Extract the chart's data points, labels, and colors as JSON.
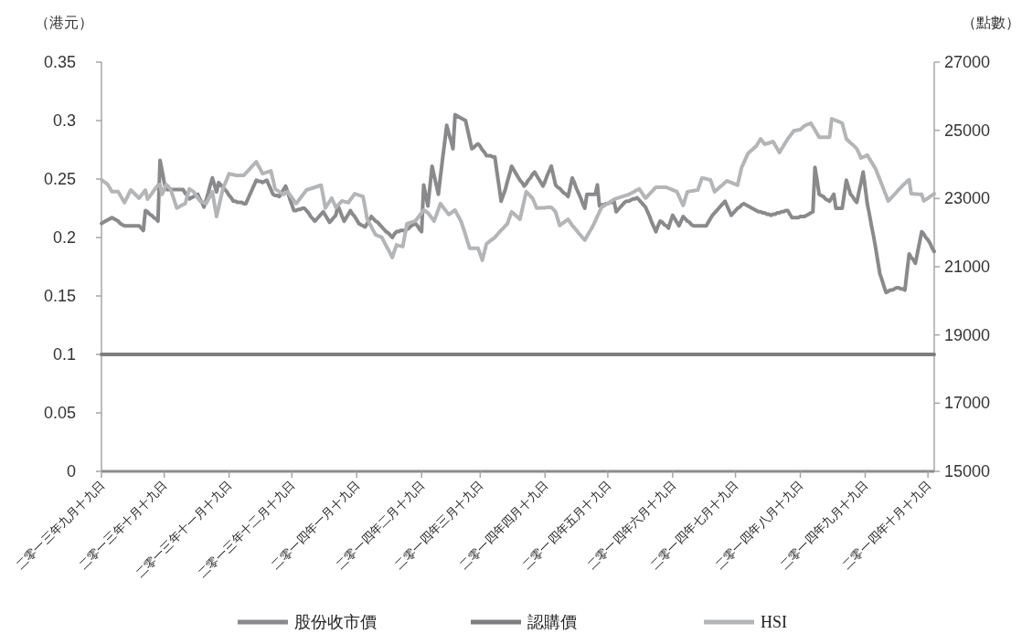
{
  "chart_data": {
    "type": "line",
    "ylabel": "（港元）",
    "y2label": "（點數）",
    "legend": "bottom",
    "line_style": "solid",
    "categories": [
      "二零一三年九月十九日",
      null,
      null,
      null,
      null,
      null,
      null,
      null,
      null,
      null,
      null,
      null,
      null,
      null,
      null,
      null,
      null,
      null,
      null,
      null,
      null,
      null,
      null,
      null,
      null,
      null,
      null,
      null,
      null,
      null,
      "二零一三年十月十九日",
      null,
      null,
      null,
      null,
      null,
      null,
      null,
      null,
      null,
      null,
      null,
      null,
      null,
      null,
      null,
      null,
      null,
      null,
      null,
      null,
      null,
      null,
      null,
      null,
      null,
      null,
      null,
      null,
      null,
      null,
      "二零一三年十一月十九日",
      null,
      null,
      null,
      null,
      null,
      null,
      null,
      null,
      null,
      null,
      null,
      null,
      null,
      null,
      null,
      null,
      null,
      null,
      null,
      null,
      null,
      null,
      null,
      null,
      null,
      null,
      null,
      null,
      null,
      "二零一三年十二月十九日",
      null,
      null,
      null,
      null,
      null,
      null,
      null,
      null,
      null,
      null,
      null,
      null,
      null,
      null,
      null,
      null,
      null,
      null,
      null,
      null,
      null,
      null,
      null,
      null,
      null,
      null,
      null,
      null,
      null,
      null,
      "二零一四年一月十九日",
      null,
      null,
      null,
      null,
      null,
      null,
      null,
      null,
      null,
      null,
      null,
      null,
      null,
      null,
      null,
      null,
      null,
      null,
      null,
      null,
      null,
      null,
      null,
      null,
      null,
      null,
      null,
      null,
      null,
      null,
      "二零一四年二月十九日",
      null,
      null,
      null,
      null,
      null,
      null,
      null,
      null,
      null,
      null,
      null,
      null,
      null,
      null,
      null,
      null,
      null,
      null,
      null,
      null,
      null,
      null,
      null,
      null,
      null,
      null,
      null,
      "二零一四年三月十九日",
      null,
      null,
      null,
      null,
      null,
      null,
      null,
      null,
      null,
      null,
      null,
      null,
      null,
      null,
      null,
      null,
      null,
      null,
      null,
      null,
      null,
      null,
      null,
      null,
      null,
      null,
      null,
      null,
      null,
      null,
      "二零一四年四月十九日",
      null,
      null,
      null,
      null,
      null,
      null,
      null,
      null,
      null,
      null,
      null,
      null,
      null,
      null,
      null,
      null,
      null,
      null,
      null,
      null,
      null,
      null,
      null,
      null,
      null,
      null,
      null,
      null,
      null,
      "二零一四年五月十九日",
      null,
      null,
      null,
      null,
      null,
      null,
      null,
      null,
      null,
      null,
      null,
      null,
      null,
      null,
      null,
      null,
      null,
      null,
      null,
      null,
      null,
      null,
      null,
      null,
      null,
      null,
      null,
      null,
      null,
      null,
      "二零一四年六月十九日",
      null,
      null,
      null,
      null,
      null,
      null,
      null,
      null,
      null,
      null,
      null,
      null,
      null,
      null,
      null,
      null,
      null,
      null,
      null,
      null,
      null,
      null,
      null,
      null,
      null,
      null,
      null,
      null,
      null,
      "二零一四年七月十九日",
      null,
      null,
      null,
      null,
      null,
      null,
      null,
      null,
      null,
      null,
      null,
      null,
      null,
      null,
      null,
      null,
      null,
      null,
      null,
      null,
      null,
      null,
      null,
      null,
      null,
      null,
      null,
      null,
      null,
      null,
      "二零一四年八月十九日",
      null,
      null,
      null,
      null,
      null,
      null,
      null,
      null,
      null,
      null,
      null,
      null,
      null,
      null,
      null,
      null,
      null,
      null,
      null,
      null,
      null,
      null,
      null,
      null,
      null,
      null,
      null,
      null,
      null,
      null,
      "二零一四年九月十九日",
      null,
      null,
      null,
      null,
      null,
      null,
      null,
      null,
      null,
      null,
      null,
      null,
      null,
      null,
      null,
      null,
      null,
      null,
      null,
      null,
      null,
      null,
      null,
      null,
      null,
      null,
      null,
      null,
      null,
      "二零一四年十月十九日",
      null,
      null,
      null
    ],
    "ylim": [
      0,
      0.35
    ],
    "yticks": [
      0,
      0.05,
      0.1,
      0.15,
      0.2,
      0.25,
      0.3,
      0.35
    ],
    "y2lim": [
      15000,
      27000
    ],
    "y2ticks": [
      15000,
      17000,
      19000,
      21000,
      23000,
      25000,
      27000
    ],
    "series": [
      {
        "name": "股份收市價",
        "color": "#8a8a8c",
        "axis": "y",
        "values": [
          0.212,
          0.213,
          0.214,
          0.215,
          0.216,
          0.217,
          0.216,
          0.215,
          0.214,
          0.212,
          0.211,
          0.21,
          0.21,
          0.21,
          0.21,
          0.21,
          0.21,
          0.21,
          0.21,
          0.208,
          0.206,
          0.223,
          0.222,
          0.22,
          0.219,
          0.217,
          0.216,
          0.214,
          0.266,
          0.257,
          0.247,
          0.241,
          0.241,
          0.241,
          0.241,
          0.241,
          0.241,
          0.241,
          0.241,
          0.241,
          0.238,
          0.236,
          0.233,
          0.234,
          0.235,
          0.236,
          0.237,
          0.233,
          0.23,
          0.226,
          0.232,
          0.238,
          0.245,
          0.251,
          0.245,
          0.239,
          0.247,
          0.245,
          0.243,
          0.241,
          0.239,
          0.236,
          0.234,
          0.231,
          0.231,
          0.23,
          0.23,
          0.23,
          0.229,
          0.229,
          0.233,
          0.237,
          0.241,
          0.245,
          0.249,
          0.248,
          0.248,
          0.247,
          0.248,
          0.249,
          0.245,
          0.241,
          0.237,
          0.236,
          0.236,
          0.235,
          0.238,
          0.241,
          0.244,
          0.239,
          0.233,
          0.228,
          0.223,
          0.223,
          0.224,
          0.224,
          0.225,
          0.225,
          0.223,
          0.221,
          0.218,
          0.216,
          0.214,
          0.216,
          0.218,
          0.22,
          0.222,
          0.219,
          0.216,
          0.213,
          0.215,
          0.217,
          0.219,
          0.227,
          0.223,
          0.218,
          0.214,
          0.217,
          0.22,
          0.223,
          0.22,
          0.218,
          0.215,
          0.212,
          0.211,
          0.21,
          0.209,
          0.212,
          0.215,
          0.218,
          0.216,
          0.214,
          0.213,
          0.211,
          0.209,
          0.207,
          0.205,
          0.204,
          0.202,
          0.2,
          0.203,
          0.205,
          0.205,
          0.206,
          0.206,
          0.206,
          0.207,
          0.208,
          0.21,
          0.211,
          0.212,
          0.21,
          0.207,
          0.205,
          0.245,
          0.236,
          0.227,
          0.244,
          0.261,
          0.253,
          0.245,
          0.237,
          0.252,
          0.267,
          0.281,
          0.296,
          0.289,
          0.283,
          0.276,
          0.305,
          0.304,
          0.303,
          0.302,
          0.301,
          0.3,
          0.292,
          0.284,
          0.276,
          0.277,
          0.279,
          0.28,
          0.278,
          0.275,
          0.273,
          0.27,
          0.27,
          0.27,
          0.269,
          0.269,
          0.256,
          0.244,
          0.231,
          0.236,
          0.241,
          0.248,
          0.254,
          0.261,
          0.258,
          0.255,
          0.252,
          0.249,
          0.247,
          0.244,
          0.246,
          0.249,
          0.251,
          0.254,
          0.256,
          0.253,
          0.25,
          0.247,
          0.244,
          0.248,
          0.253,
          0.257,
          0.261,
          0.253,
          0.245,
          0.243,
          0.242,
          0.24,
          0.238,
          0.237,
          0.235,
          0.243,
          0.251,
          0.247,
          0.242,
          0.238,
          0.234,
          0.229,
          0.225,
          0.237,
          0.237,
          0.237,
          0.237,
          0.237,
          0.245,
          0.227,
          0.228,
          0.228,
          0.229,
          0.229,
          0.23,
          0.23,
          0.231,
          0.222,
          0.224,
          0.226,
          0.228,
          0.23,
          0.231,
          0.231,
          0.232,
          0.233,
          0.233,
          0.234,
          0.232,
          0.23,
          0.228,
          0.226,
          0.222,
          0.218,
          0.213,
          0.209,
          0.205,
          0.21,
          0.214,
          0.213,
          0.211,
          0.21,
          0.208,
          0.214,
          0.219,
          0.216,
          0.213,
          0.21,
          0.214,
          0.218,
          0.216,
          0.214,
          0.213,
          0.211,
          0.21,
          0.21,
          0.21,
          0.21,
          0.21,
          0.21,
          0.21,
          0.213,
          0.216,
          0.219,
          0.221,
          0.223,
          0.225,
          0.227,
          0.229,
          0.231,
          0.227,
          0.223,
          0.219,
          0.221,
          0.223,
          0.225,
          0.226,
          0.228,
          0.229,
          0.228,
          0.227,
          0.226,
          0.225,
          0.224,
          0.223,
          0.222,
          0.222,
          0.221,
          0.221,
          0.22,
          0.22,
          0.219,
          0.22,
          0.22,
          0.221,
          0.221,
          0.222,
          0.222,
          0.223,
          0.223,
          0.22,
          0.217,
          0.217,
          0.217,
          0.217,
          0.218,
          0.218,
          0.218,
          0.219,
          0.22,
          0.221,
          0.222,
          0.26,
          0.249,
          0.237,
          0.236,
          0.235,
          0.233,
          0.232,
          0.231,
          0.234,
          0.237,
          0.225,
          0.225,
          0.225,
          0.225,
          0.237,
          0.249,
          0.243,
          0.237,
          0.235,
          0.232,
          0.23,
          0.239,
          0.247,
          0.256,
          0.243,
          0.229,
          0.22,
          0.21,
          0.201,
          0.191,
          0.18,
          0.169,
          0.164,
          0.158,
          0.153,
          0.154,
          0.155,
          0.155,
          0.156,
          0.157,
          0.157,
          0.156,
          0.156,
          0.155,
          0.171,
          0.186,
          0.183,
          0.181,
          0.178,
          0.187,
          0.196,
          0.205,
          0.203,
          0.2,
          0.198,
          0.195,
          0.191,
          0.188
        ]
      },
      {
        "name": "認購價",
        "color": "#7e7e80",
        "axis": "y",
        "values": [
          0.1,
          0.1,
          0.1,
          0.1,
          0.1,
          0.1,
          0.1,
          0.1,
          0.1,
          0.1,
          0.1,
          0.1,
          0.1,
          0.1,
          0.1,
          0.1,
          0.1,
          0.1,
          0.1,
          0.1,
          0.1,
          0.1,
          0.1,
          0.1,
          0.1,
          0.1,
          0.1,
          0.1,
          0.1,
          0.1,
          0.1,
          0.1,
          0.1,
          0.1,
          0.1,
          0.1,
          0.1,
          0.1,
          0.1,
          0.1,
          0.1,
          0.1,
          0.1,
          0.1,
          0.1,
          0.1,
          0.1,
          0.1,
          0.1,
          0.1,
          0.1,
          0.1,
          0.1,
          0.1,
          0.1,
          0.1,
          0.1,
          0.1,
          0.1,
          0.1,
          0.1,
          0.1,
          0.1,
          0.1,
          0.1,
          0.1,
          0.1,
          0.1,
          0.1,
          0.1,
          0.1,
          0.1,
          0.1,
          0.1,
          0.1,
          0.1,
          0.1,
          0.1,
          0.1,
          0.1,
          0.1,
          0.1,
          0.1,
          0.1,
          0.1,
          0.1,
          0.1,
          0.1,
          0.1,
          0.1,
          0.1,
          0.1,
          0.1,
          0.1,
          0.1,
          0.1,
          0.1,
          0.1,
          0.1,
          0.1,
          0.1,
          0.1,
          0.1,
          0.1,
          0.1,
          0.1,
          0.1,
          0.1,
          0.1,
          0.1,
          0.1,
          0.1,
          0.1,
          0.1,
          0.1,
          0.1,
          0.1,
          0.1,
          0.1,
          0.1,
          0.1,
          0.1,
          0.1,
          0.1,
          0.1,
          0.1,
          0.1,
          0.1,
          0.1,
          0.1,
          0.1,
          0.1,
          0.1,
          0.1,
          0.1,
          0.1,
          0.1,
          0.1,
          0.1,
          0.1,
          0.1,
          0.1,
          0.1,
          0.1,
          0.1,
          0.1,
          0.1,
          0.1,
          0.1,
          0.1,
          0.1,
          0.1,
          0.1,
          0.1,
          0.1,
          0.1,
          0.1,
          0.1,
          0.1,
          0.1,
          0.1,
          0.1,
          0.1,
          0.1,
          0.1,
          0.1,
          0.1,
          0.1,
          0.1,
          0.1,
          0.1,
          0.1,
          0.1,
          0.1,
          0.1,
          0.1,
          0.1,
          0.1,
          0.1,
          0.1,
          0.1,
          0.1,
          0.1,
          0.1,
          0.1,
          0.1,
          0.1,
          0.1,
          0.1,
          0.1,
          0.1,
          0.1,
          0.1,
          0.1,
          0.1,
          0.1,
          0.1,
          0.1,
          0.1,
          0.1,
          0.1,
          0.1,
          0.1,
          0.1,
          0.1,
          0.1,
          0.1,
          0.1,
          0.1,
          0.1,
          0.1,
          0.1,
          0.1,
          0.1,
          0.1,
          0.1,
          0.1,
          0.1,
          0.1,
          0.1,
          0.1,
          0.1,
          0.1,
          0.1,
          0.1,
          0.1,
          0.1,
          0.1,
          0.1,
          0.1,
          0.1,
          0.1,
          0.1,
          0.1,
          0.1,
          0.1,
          0.1,
          0.1,
          0.1,
          0.1,
          0.1,
          0.1,
          0.1,
          0.1,
          0.1,
          0.1,
          0.1,
          0.1,
          0.1,
          0.1,
          0.1,
          0.1,
          0.1,
          0.1,
          0.1,
          0.1,
          0.1,
          0.1,
          0.1,
          0.1,
          0.1,
          0.1,
          0.1,
          0.1,
          0.1,
          0.1,
          0.1,
          0.1,
          0.1,
          0.1,
          0.1,
          0.1,
          0.1,
          0.1,
          0.1,
          0.1,
          0.1,
          0.1,
          0.1,
          0.1,
          0.1,
          0.1,
          0.1,
          0.1,
          0.1,
          0.1,
          0.1,
          0.1,
          0.1,
          0.1,
          0.1,
          0.1,
          0.1,
          0.1,
          0.1,
          0.1,
          0.1,
          0.1,
          0.1,
          0.1,
          0.1,
          0.1,
          0.1,
          0.1,
          0.1,
          0.1,
          0.1,
          0.1,
          0.1,
          0.1,
          0.1,
          0.1,
          0.1,
          0.1,
          0.1,
          0.1,
          0.1,
          0.1,
          0.1,
          0.1,
          0.1,
          0.1,
          0.1,
          0.1,
          0.1,
          0.1,
          0.1,
          0.1,
          0.1,
          0.1,
          0.1,
          0.1,
          0.1,
          0.1,
          0.1,
          0.1,
          0.1,
          0.1,
          0.1,
          0.1,
          0.1,
          0.1,
          0.1,
          0.1,
          0.1,
          0.1,
          0.1,
          0.1,
          0.1,
          0.1,
          0.1,
          0.1,
          0.1,
          0.1,
          0.1,
          0.1,
          0.1,
          0.1,
          0.1,
          0.1,
          0.1,
          0.1,
          0.1,
          0.1,
          0.1,
          0.1,
          0.1,
          0.1,
          0.1,
          0.1,
          0.1,
          0.1,
          0.1,
          0.1,
          0.1,
          0.1,
          0.1,
          0.1,
          0.1,
          0.1,
          0.1,
          0.1,
          0.1,
          0.1,
          0.1,
          0.1,
          0.1,
          0.1,
          0.1,
          0.1,
          0.1,
          0.1,
          0.1,
          0.1,
          0.1,
          0.1,
          0.1,
          0.1,
          0.1
        ]
      },
      {
        "name": "HSI",
        "color": "#b4b5b7",
        "axis": "y2",
        "values": [
          23550,
          23500,
          23460,
          23410,
          23310,
          23200,
          23200,
          23200,
          23200,
          23090,
          22990,
          22880,
          23000,
          23130,
          23250,
          23190,
          23130,
          23070,
          23010,
          23090,
          23170,
          23250,
          22980,
          23060,
          23140,
          23230,
          23310,
          23390,
          23410,
          23120,
          23270,
          23410,
          23350,
          23280,
          23090,
          22910,
          22720,
          22750,
          22790,
          22820,
          22850,
          23070,
          23280,
          23240,
          23200,
          23110,
          23020,
          22930,
          22900,
          22880,
          22850,
          22970,
          23080,
          23200,
          22840,
          22470,
          22740,
          23010,
          23280,
          23430,
          23580,
          23730,
          23710,
          23700,
          23680,
          23680,
          23680,
          23680,
          23680,
          23750,
          23810,
          23880,
          23950,
          24010,
          24080,
          23960,
          23850,
          23730,
          23750,
          23770,
          23790,
          23810,
          23550,
          23280,
          23240,
          23200,
          23160,
          23120,
          23160,
          23200,
          23110,
          23030,
          22940,
          22850,
          22930,
          23010,
          23090,
          23170,
          23250,
          23270,
          23290,
          23310,
          23330,
          23350,
          23370,
          23390,
          23060,
          22720,
          22820,
          22910,
          23010,
          22880,
          22740,
          22800,
          22870,
          22930,
          22910,
          22900,
          22880,
          22970,
          23050,
          23140,
          23120,
          23100,
          23080,
          23060,
          22730,
          22390,
          22280,
          22170,
          22050,
          21940,
          21910,
          21890,
          21860,
          21740,
          21620,
          21510,
          21390,
          21270,
          21460,
          21640,
          21620,
          21610,
          21590,
          21930,
          22260,
          22280,
          22300,
          22320,
          22340,
          22420,
          22500,
          22580,
          22660,
          22620,
          22580,
          22500,
          22420,
          22340,
          22510,
          22680,
          22850,
          22770,
          22690,
          22610,
          22530,
          22570,
          22620,
          22660,
          22540,
          22430,
          22310,
          22120,
          21930,
          21730,
          21540,
          21540,
          21540,
          21540,
          21540,
          21370,
          21190,
          21430,
          21670,
          21720,
          21770,
          21810,
          21860,
          21930,
          22000,
          22070,
          22130,
          22200,
          22260,
          22440,
          22610,
          22560,
          22500,
          22450,
          22390,
          22660,
          22930,
          23200,
          23140,
          23070,
          23010,
          22870,
          22720,
          22720,
          22730,
          22730,
          22730,
          22740,
          22740,
          22740,
          22680,
          22610,
          22410,
          22210,
          22260,
          22300,
          22350,
          22390,
          22300,
          22210,
          22140,
          22070,
          21990,
          21920,
          21850,
          21780,
          21890,
          22000,
          22100,
          22210,
          22340,
          22480,
          22610,
          22740,
          22780,
          22820,
          22860,
          22900,
          22940,
          22980,
          23000,
          23020,
          23040,
          23060,
          23080,
          23100,
          23120,
          23150,
          23180,
          23220,
          23250,
          23280,
          23190,
          23100,
          23010,
          23070,
          23140,
          23200,
          23270,
          23330,
          23330,
          23330,
          23330,
          23330,
          23330,
          23300,
          23280,
          23250,
          23230,
          23200,
          23070,
          22930,
          22800,
          23000,
          23200,
          23210,
          23220,
          23230,
          23240,
          23250,
          23430,
          23600,
          23590,
          23580,
          23560,
          23550,
          23380,
          23200,
          23250,
          23310,
          23360,
          23410,
          23470,
          23520,
          23490,
          23470,
          23440,
          23420,
          23390,
          23660,
          23920,
          24050,
          24190,
          24320,
          24380,
          24430,
          24490,
          24540,
          24650,
          24750,
          24670,
          24590,
          24610,
          24630,
          24650,
          24670,
          24560,
          24460,
          24350,
          24450,
          24550,
          24650,
          24750,
          24830,
          24910,
          24990,
          25000,
          25010,
          25020,
          25080,
          25130,
          25160,
          25180,
          25210,
          25110,
          25010,
          24900,
          24800,
          24800,
          24800,
          24800,
          24800,
          24800,
          25340,
          25310,
          25290,
          25260,
          25240,
          25210,
          24980,
          24750,
          24690,
          24630,
          24580,
          24520,
          24460,
          24330,
          24190,
          24220,
          24240,
          24270,
          24170,
          24070,
          23970,
          23870,
          23710,
          23560,
          23400,
          23240,
          23090,
          22930,
          22990,
          23060,
          23120,
          23190,
          23260,
          23320,
          23390,
          23440,
          23500,
          23550,
          23140,
          23140,
          23130,
          23130,
          23120,
          23120,
          22930,
          22970,
          23010,
          23060,
          23100,
          23140
        ]
      }
    ]
  }
}
